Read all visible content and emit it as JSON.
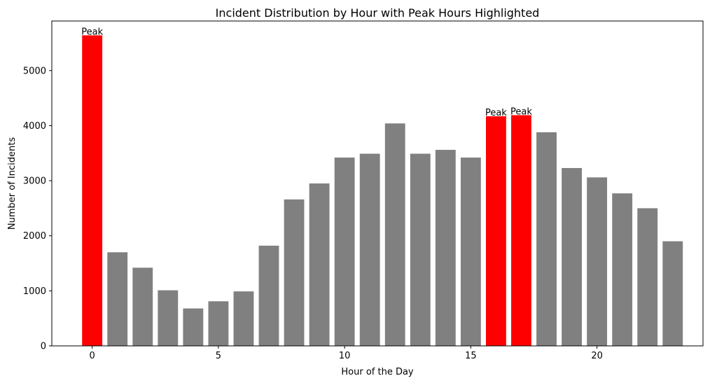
{
  "chart_data": {
    "type": "bar",
    "title": "Incident Distribution by Hour with Peak Hours Highlighted",
    "xlabel": "Hour of the Day",
    "ylabel": "Number of Incidents",
    "x": [
      0,
      1,
      2,
      3,
      4,
      5,
      6,
      7,
      8,
      9,
      10,
      11,
      12,
      13,
      14,
      15,
      16,
      17,
      18,
      19,
      20,
      21,
      22,
      23
    ],
    "values": [
      5640,
      1700,
      1420,
      1010,
      680,
      810,
      990,
      1820,
      2660,
      2950,
      3420,
      3490,
      4040,
      3490,
      3560,
      3420,
      4170,
      4190,
      3880,
      3230,
      3060,
      2770,
      2500,
      1900
    ],
    "peak_hours": [
      0,
      16,
      17
    ],
    "peak_label": "Peak",
    "xlim": [
      -1.6,
      24.2
    ],
    "ylim": [
      0,
      5900
    ],
    "xticks": [
      0,
      5,
      10,
      15,
      20
    ],
    "yticks": [
      0,
      1000,
      2000,
      3000,
      4000,
      5000
    ],
    "colors": {
      "normal": "#808080",
      "peak": "#ff0000"
    },
    "grid": false,
    "legend": "none"
  }
}
